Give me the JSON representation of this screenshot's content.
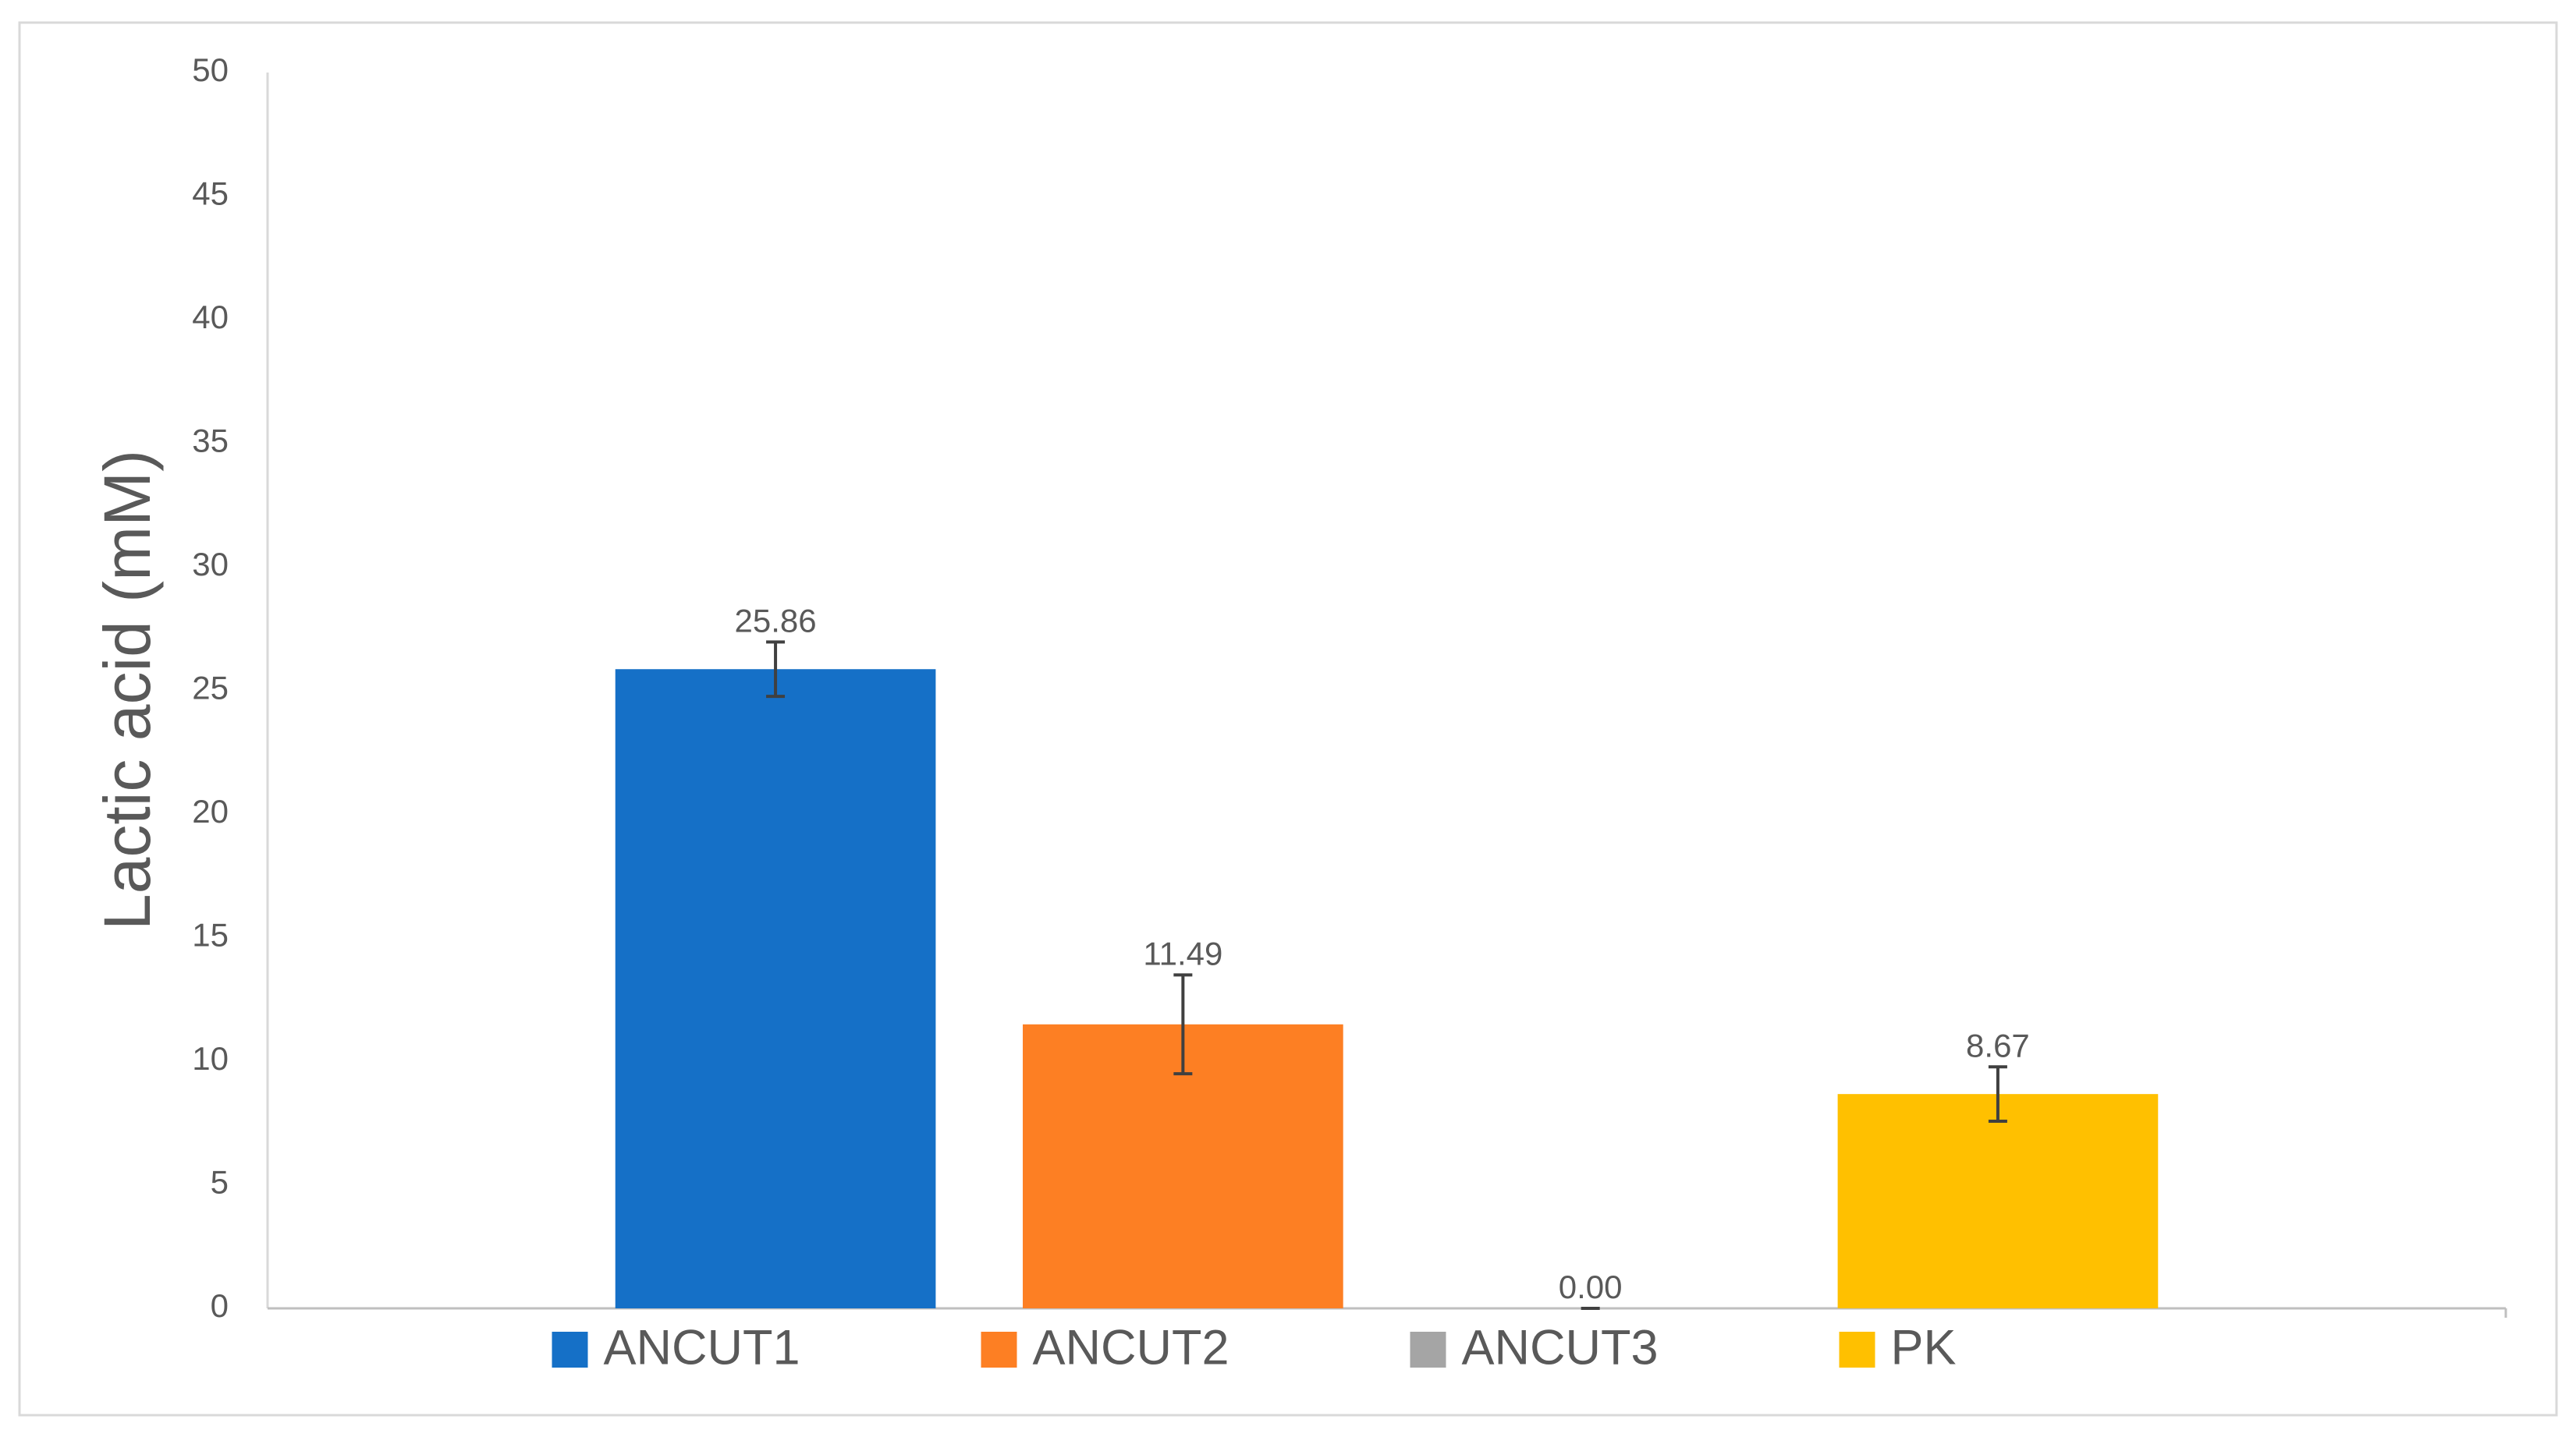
{
  "chart_data": {
    "type": "bar",
    "y_label": "Lactic acid (mM)",
    "categories": [
      null
    ],
    "series": [
      {
        "name": "ANCUT1",
        "color": "#1570c7",
        "values": [
          25.86
        ],
        "value_labels": [
          "25.86"
        ],
        "errors": [
          1.1
        ]
      },
      {
        "name": "ANCUT2",
        "color": "#fd7f23",
        "values": [
          11.49
        ],
        "value_labels": [
          "11.49"
        ],
        "errors": [
          2.0
        ]
      },
      {
        "name": "ANCUT3",
        "color": "#a5a5a5",
        "values": [
          0
        ],
        "value_labels": [
          "0.00"
        ],
        "errors": [
          0
        ]
      },
      {
        "name": "PK",
        "color": "#ffc000",
        "values": [
          8.67
        ],
        "value_labels": [
          "8.67"
        ],
        "errors": [
          1.1
        ]
      }
    ],
    "ylim": [
      0,
      50
    ],
    "yticks": [
      0,
      5,
      10,
      15,
      20,
      25,
      30,
      35,
      40,
      45,
      50
    ],
    "grid": false,
    "legend": "bottom"
  }
}
